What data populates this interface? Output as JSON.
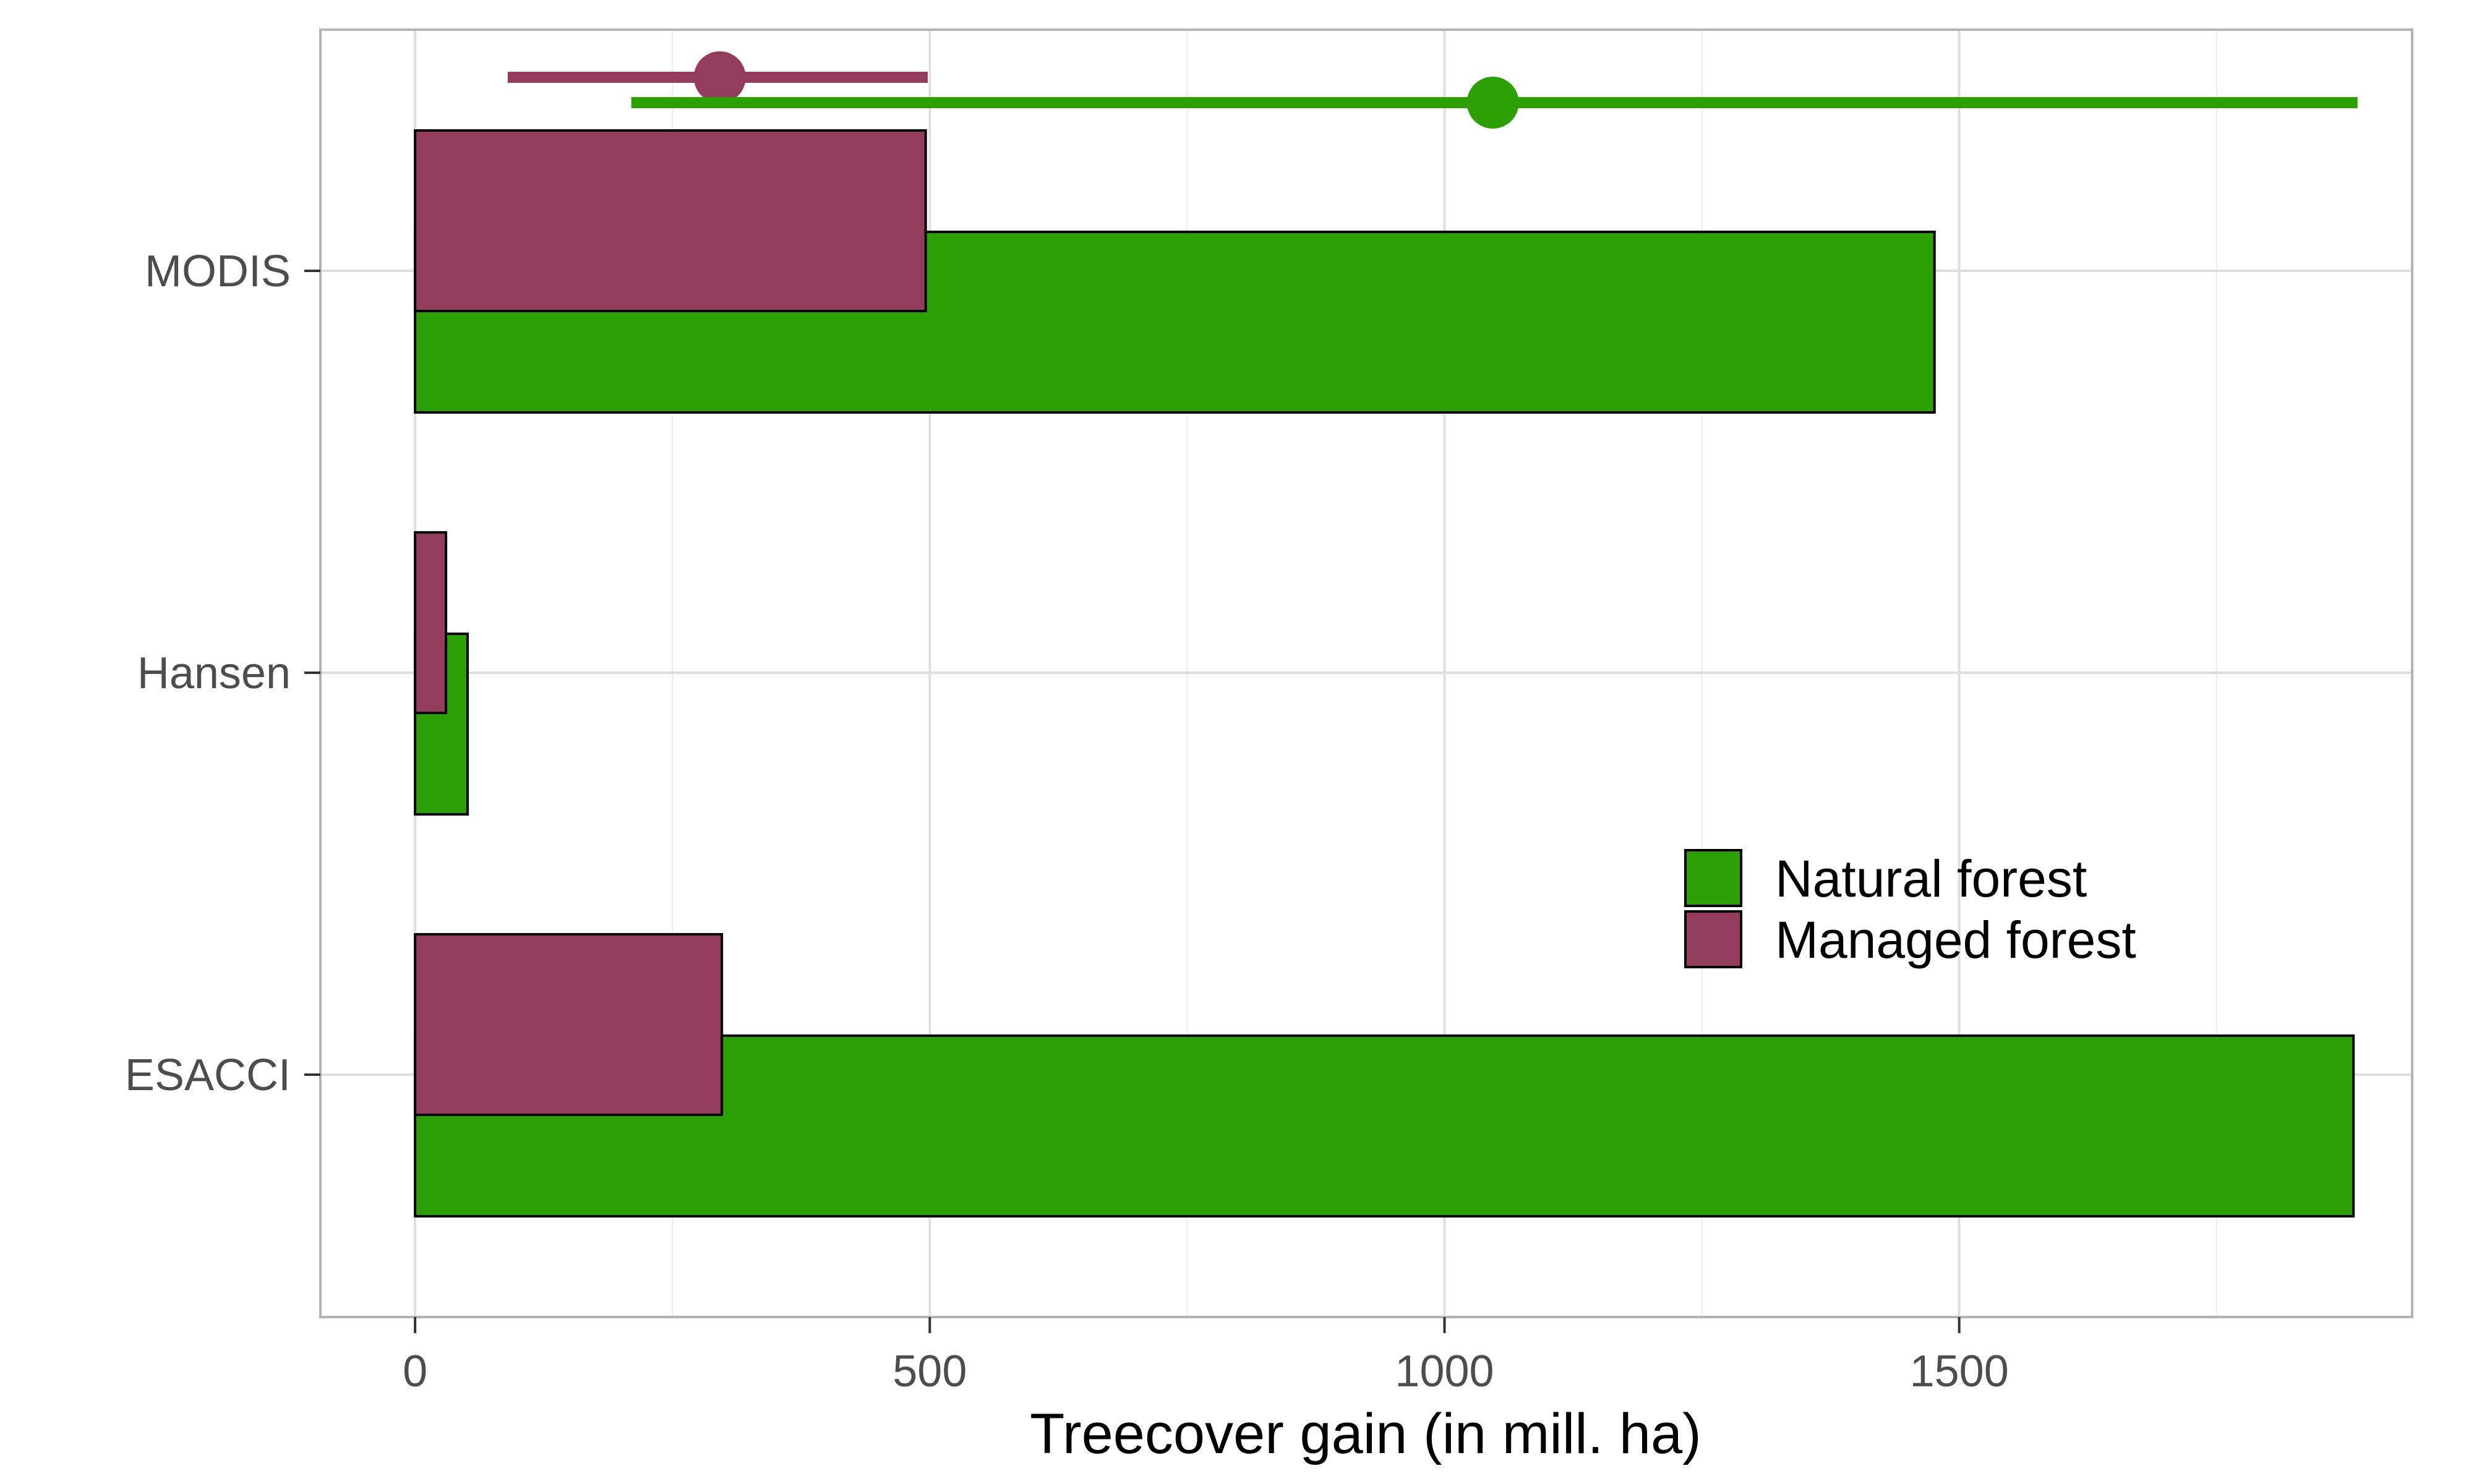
{
  "chart_data": {
    "type": "bar",
    "orientation": "horizontal",
    "xlabel": "Treecover gain (in mill. ha)",
    "ylabel": "",
    "title": "",
    "xlim": [
      -92,
      1940
    ],
    "xticks": [
      0,
      500,
      1000,
      1500
    ],
    "grid": true,
    "categories": [
      "ESACCI",
      "Hansen",
      "MODIS"
    ],
    "series": [
      {
        "name": "Natural forest",
        "color": "#2ca002",
        "values": [
          1883,
          51,
          1476
        ]
      },
      {
        "name": "Managed forest",
        "color": "#943c5e",
        "values": [
          298,
          30,
          496
        ]
      }
    ],
    "intervals": [
      {
        "series": "Managed forest",
        "color": "#943c5e",
        "low": 90,
        "mid": 296,
        "high": 498
      },
      {
        "series": "Natural forest",
        "color": "#2ca002",
        "low": 210,
        "mid": 1047,
        "high": 1887
      }
    ],
    "legend": {
      "placement": "center-right"
    }
  }
}
